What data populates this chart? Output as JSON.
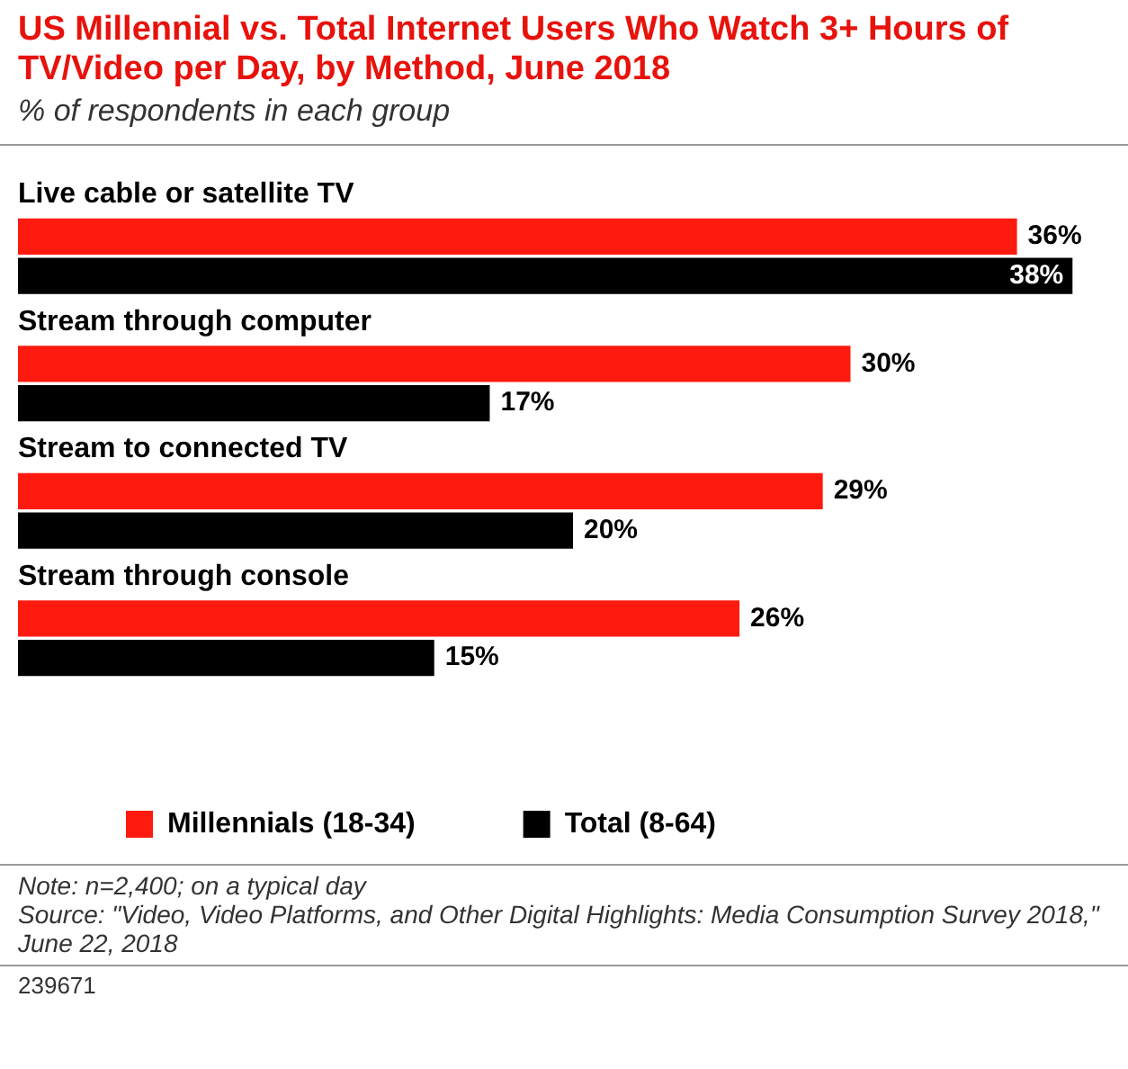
{
  "chart_data": {
    "type": "bar",
    "orientation": "horizontal",
    "title": "US Millennial vs. Total Internet Users Who Watch 3+ Hours of TV/Video per Day, by Method, June 2018",
    "subtitle": "% of respondents in each group",
    "categories": [
      "Live cable or satellite TV",
      "Stream through computer",
      "Stream to connected TV",
      "Stream through console"
    ],
    "series": [
      {
        "name": "Millennials (18-34)",
        "color": "#ff1a0f",
        "values": [
          36,
          30,
          29,
          26
        ],
        "value_labels": [
          "36%",
          "30%",
          "29%",
          "26%"
        ]
      },
      {
        "name": "Total (8-64)",
        "color": "#000000",
        "values": [
          38,
          17,
          20,
          15
        ],
        "value_labels": [
          "38%",
          "17%",
          "20%",
          "15%"
        ]
      }
    ],
    "legend": "bottom left",
    "annotations": [
      "Note: n=2,400; on a typical day",
      "Source: \"Video, Video Platforms, and Other Digital Highlights: Media Consumption Survey 2018,\" June 22, 2018",
      "239671"
    ]
  }
}
